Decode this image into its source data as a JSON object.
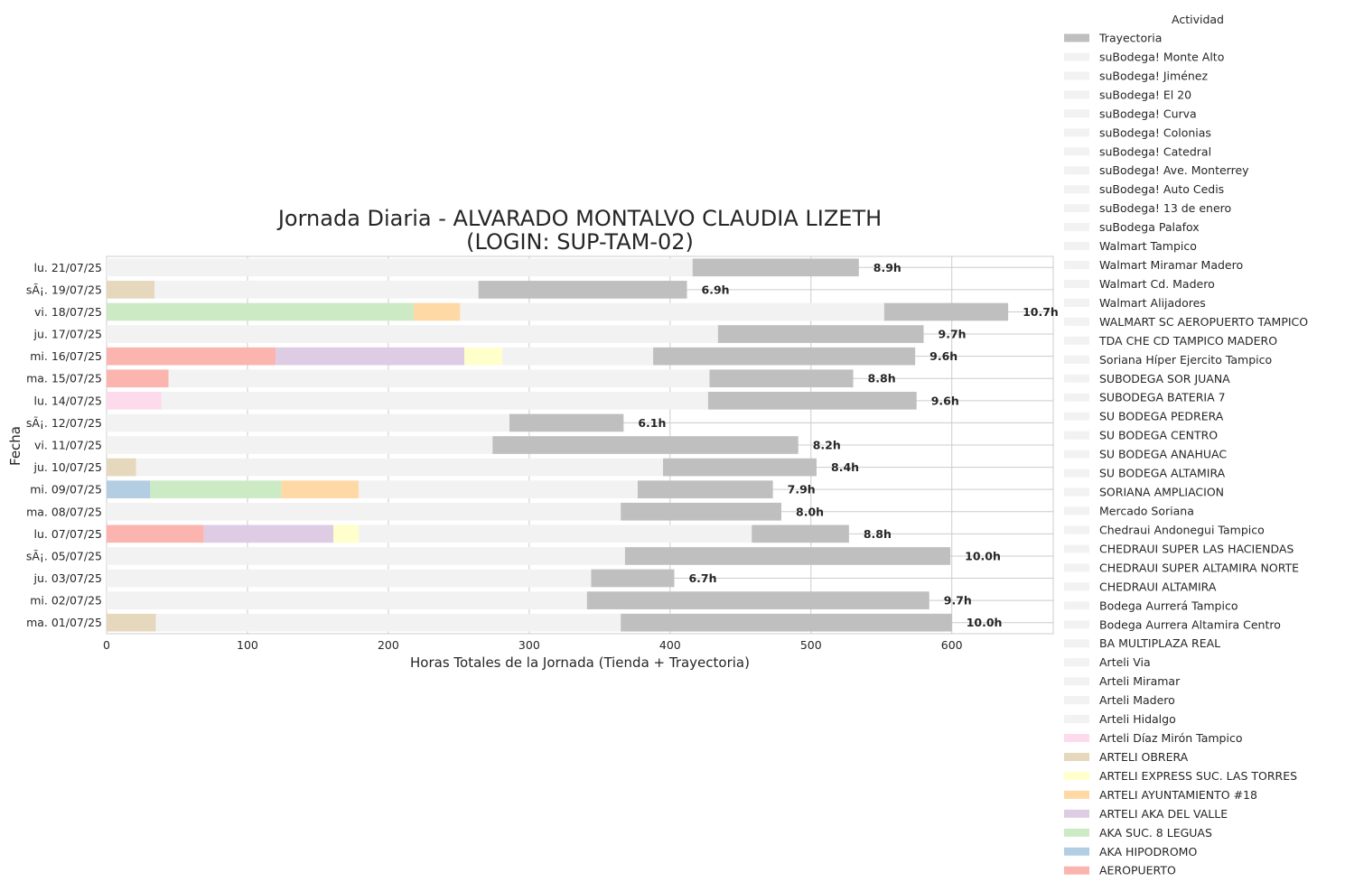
{
  "chart_data": {
    "type": "bar",
    "orientation": "horizontal",
    "stacked": true,
    "title_line1": "Jornada Diaria - ALVARADO MONTALVO CLAUDIA LIZETH",
    "title_line2": "(LOGIN: SUP-TAM-02)",
    "xlabel": "Horas Totales de la Jornada (Tienda + Trayectoria)",
    "ylabel": "Fecha",
    "xlim": [
      0,
      672
    ],
    "xticks": [
      0,
      100,
      200,
      300,
      400,
      500,
      600
    ],
    "grid": true,
    "legend_title": "Actividad",
    "legend_position": "right",
    "categories": [
      "lu. 21/07/25",
      "sÃ¡. 19/07/25",
      "vi. 18/07/25",
      "ju. 17/07/25",
      "mi. 16/07/25",
      "ma. 15/07/25",
      "lu. 14/07/25",
      "sÃ¡. 12/07/25",
      "vi. 11/07/25",
      "ju. 10/07/25",
      "mi. 09/07/25",
      "ma. 08/07/25",
      "lu. 07/07/25",
      "sÃ¡. 05/07/25",
      "ju. 03/07/25",
      "mi. 02/07/25",
      "ma. 01/07/25"
    ],
    "totals_label": [
      "8.9h",
      "6.9h",
      "10.7h",
      "9.7h",
      "9.6h",
      "8.8h",
      "9.6h",
      "6.1h",
      "8.2h",
      "8.4h",
      "7.9h",
      "8.0h",
      "8.8h",
      "10.0h",
      "6.7h",
      "9.7h",
      "10.0h"
    ],
    "legend": [
      {
        "name": "Trayectoria",
        "color": "#bfbfbf"
      },
      {
        "name": "suBodega! Monte Alto",
        "color": "#f2f2f2"
      },
      {
        "name": "suBodega! Jiménez",
        "color": "#f2f2f2"
      },
      {
        "name": "suBodega! El 20",
        "color": "#f2f2f2"
      },
      {
        "name": "suBodega! Curva",
        "color": "#f2f2f2"
      },
      {
        "name": "suBodega! Colonias",
        "color": "#f2f2f2"
      },
      {
        "name": "suBodega! Catedral",
        "color": "#f2f2f2"
      },
      {
        "name": "suBodega! Ave. Monterrey",
        "color": "#f2f2f2"
      },
      {
        "name": "suBodega! Auto Cedis",
        "color": "#f2f2f2"
      },
      {
        "name": "suBodega! 13 de enero",
        "color": "#f2f2f2"
      },
      {
        "name": "suBodega Palafox",
        "color": "#f2f2f2"
      },
      {
        "name": "Walmart Tampico",
        "color": "#f2f2f2"
      },
      {
        "name": "Walmart Miramar Madero",
        "color": "#f2f2f2"
      },
      {
        "name": "Walmart Cd. Madero",
        "color": "#f2f2f2"
      },
      {
        "name": "Walmart Alijadores",
        "color": "#f2f2f2"
      },
      {
        "name": "WALMART SC AEROPUERTO TAMPICO",
        "color": "#f2f2f2"
      },
      {
        "name": "TDA CHE CD TAMPICO MADERO",
        "color": "#f2f2f2"
      },
      {
        "name": "Soriana Híper Ejercito Tampico",
        "color": "#f2f2f2"
      },
      {
        "name": "SUBODEGA SOR JUANA",
        "color": "#f2f2f2"
      },
      {
        "name": "SUBODEGA BATERIA 7",
        "color": "#f2f2f2"
      },
      {
        "name": "SU BODEGA PEDRERA",
        "color": "#f2f2f2"
      },
      {
        "name": "SU BODEGA CENTRO",
        "color": "#f2f2f2"
      },
      {
        "name": "SU BODEGA ANAHUAC",
        "color": "#f2f2f2"
      },
      {
        "name": "SU BODEGA ALTAMIRA",
        "color": "#f2f2f2"
      },
      {
        "name": "SORIANA AMPLIACION",
        "color": "#f2f2f2"
      },
      {
        "name": "Mercado Soriana",
        "color": "#f2f2f2"
      },
      {
        "name": "Chedraui Andonegui Tampico",
        "color": "#f2f2f2"
      },
      {
        "name": "CHEDRAUI SUPER LAS HACIENDAS",
        "color": "#f2f2f2"
      },
      {
        "name": "CHEDRAUI SUPER ALTAMIRA NORTE",
        "color": "#f2f2f2"
      },
      {
        "name": "CHEDRAUI ALTAMIRA",
        "color": "#f2f2f2"
      },
      {
        "name": "Bodega Aurrerá Tampico",
        "color": "#f2f2f2"
      },
      {
        "name": "Bodega Aurrera Altamira Centro",
        "color": "#f2f2f2"
      },
      {
        "name": "BA MULTIPLAZA REAL",
        "color": "#f2f2f2"
      },
      {
        "name": "Arteli Via",
        "color": "#f2f2f2"
      },
      {
        "name": "Arteli Miramar",
        "color": "#f2f2f2"
      },
      {
        "name": "Arteli Madero",
        "color": "#f2f2f2"
      },
      {
        "name": "Arteli Hidalgo",
        "color": "#f2f2f2"
      },
      {
        "name": "Arteli Díaz Mirón Tampico",
        "color": "#fddaec"
      },
      {
        "name": "ARTELI OBRERA",
        "color": "#e5d8bd"
      },
      {
        "name": "ARTELI EXPRESS SUC. LAS TORRES",
        "color": "#ffffcc"
      },
      {
        "name": "ARTELI AYUNTAMIENTO #18",
        "color": "#fed9a6"
      },
      {
        "name": "ARTELI AKA DEL VALLE",
        "color": "#decbe4"
      },
      {
        "name": "AKA SUC. 8 LEGUAS",
        "color": "#ccebc5"
      },
      {
        "name": "AKA HIPODROMO",
        "color": "#b3cde3"
      },
      {
        "name": "AEROPUERTO",
        "color": "#fbb4ae"
      }
    ],
    "rows": [
      {
        "segments": [
          {
            "a": "store",
            "v": 416
          },
          {
            "a": "Trayectoria",
            "v": 118
          }
        ]
      },
      {
        "segments": [
          {
            "a": "ARTELI OBRERA",
            "v": 34
          },
          {
            "a": "store",
            "v": 230
          },
          {
            "a": "Trayectoria",
            "v": 148
          }
        ]
      },
      {
        "segments": [
          {
            "a": "AKA SUC. 8 LEGUAS",
            "v": 218
          },
          {
            "a": "ARTELI AYUNTAMIENTO #18",
            "v": 33
          },
          {
            "a": "store",
            "v": 301
          },
          {
            "a": "Trayectoria",
            "v": 88
          }
        ]
      },
      {
        "segments": [
          {
            "a": "store",
            "v": 434
          },
          {
            "a": "Trayectoria",
            "v": 146
          }
        ]
      },
      {
        "segments": [
          {
            "a": "AEROPUERTO",
            "v": 120
          },
          {
            "a": "ARTELI AKA DEL VALLE",
            "v": 134
          },
          {
            "a": "ARTELI EXPRESS SUC. LAS TORRES",
            "v": 27
          },
          {
            "a": "store",
            "v": 107
          },
          {
            "a": "Trayectoria",
            "v": 186
          }
        ]
      },
      {
        "segments": [
          {
            "a": "AEROPUERTO",
            "v": 44
          },
          {
            "a": "store",
            "v": 384
          },
          {
            "a": "Trayectoria",
            "v": 102
          }
        ]
      },
      {
        "segments": [
          {
            "a": "Arteli Díaz Mirón Tampico",
            "v": 39
          },
          {
            "a": "store",
            "v": 388
          },
          {
            "a": "Trayectoria",
            "v": 148
          }
        ]
      },
      {
        "segments": [
          {
            "a": "store",
            "v": 286
          },
          {
            "a": "Trayectoria",
            "v": 81
          }
        ]
      },
      {
        "segments": [
          {
            "a": "store",
            "v": 274
          },
          {
            "a": "Trayectoria",
            "v": 217
          }
        ]
      },
      {
        "segments": [
          {
            "a": "ARTELI OBRERA",
            "v": 21
          },
          {
            "a": "store",
            "v": 374
          },
          {
            "a": "Trayectoria",
            "v": 109
          }
        ]
      },
      {
        "segments": [
          {
            "a": "AKA HIPODROMO",
            "v": 31
          },
          {
            "a": "AKA SUC. 8 LEGUAS",
            "v": 93
          },
          {
            "a": "ARTELI AYUNTAMIENTO #18",
            "v": 55
          },
          {
            "a": "store",
            "v": 198
          },
          {
            "a": "Trayectoria",
            "v": 96
          }
        ]
      },
      {
        "segments": [
          {
            "a": "store",
            "v": 365
          },
          {
            "a": "Trayectoria",
            "v": 114
          }
        ]
      },
      {
        "segments": [
          {
            "a": "AEROPUERTO",
            "v": 69
          },
          {
            "a": "ARTELI AKA DEL VALLE",
            "v": 92
          },
          {
            "a": "ARTELI EXPRESS SUC. LAS TORRES",
            "v": 18
          },
          {
            "a": "store",
            "v": 279
          },
          {
            "a": "Trayectoria",
            "v": 69
          }
        ]
      },
      {
        "segments": [
          {
            "a": "store",
            "v": 368
          },
          {
            "a": "Trayectoria",
            "v": 231
          }
        ]
      },
      {
        "segments": [
          {
            "a": "store",
            "v": 344
          },
          {
            "a": "Trayectoria",
            "v": 59
          }
        ]
      },
      {
        "segments": [
          {
            "a": "store",
            "v": 341
          },
          {
            "a": "Trayectoria",
            "v": 243
          }
        ]
      },
      {
        "segments": [
          {
            "a": "ARTELI OBRERA",
            "v": 35
          },
          {
            "a": "store",
            "v": 330
          },
          {
            "a": "Trayectoria",
            "v": 235
          }
        ]
      }
    ]
  }
}
